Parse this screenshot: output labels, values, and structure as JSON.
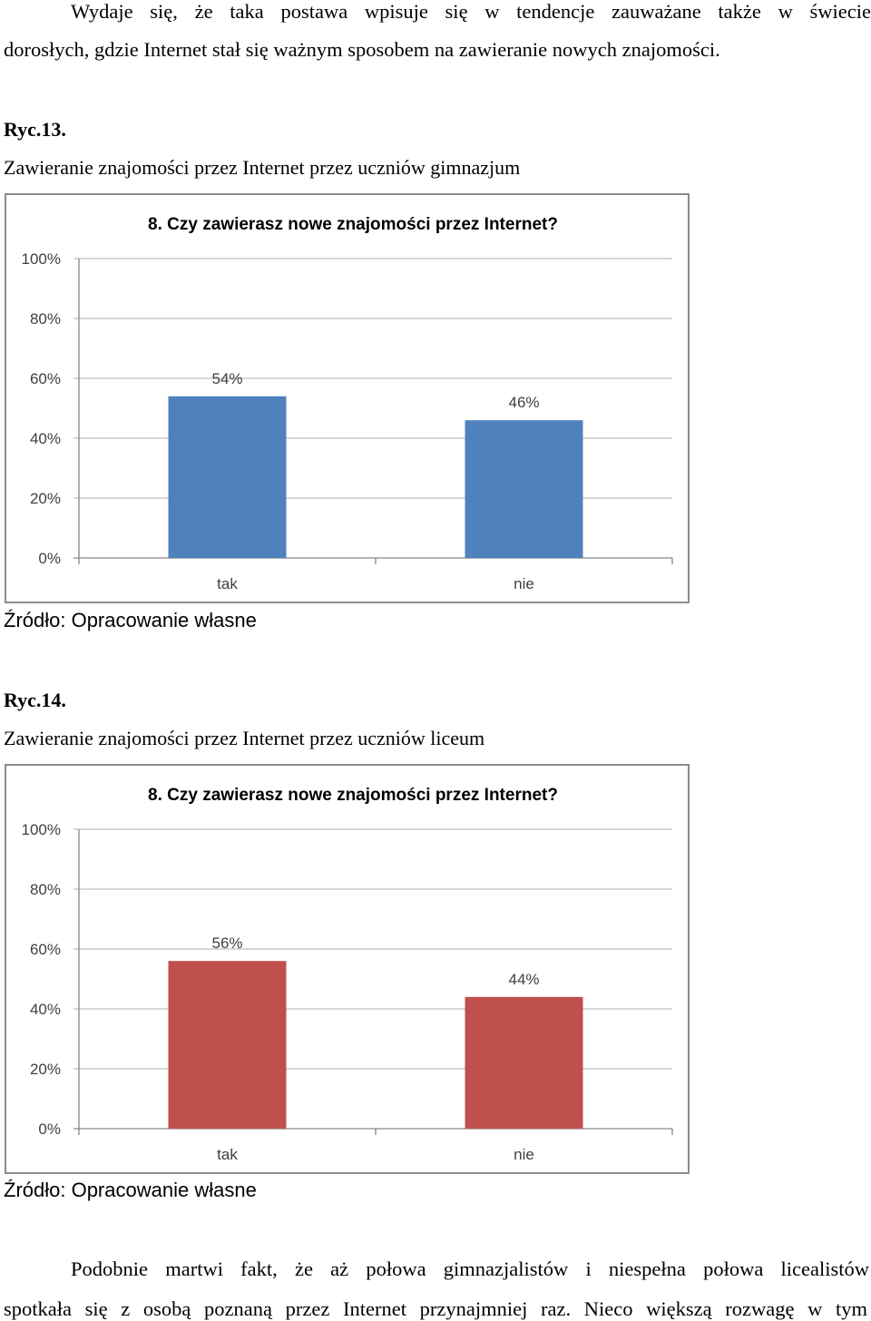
{
  "paragraph_top": {
    "line1": "Wydaje się, że taka postawa wpisuje się w tendencje zauważane także w świecie",
    "line2": "dorosłych, gdzie Internet stał się ważnym sposobem na zawieranie nowych znajomości."
  },
  "figures": [
    {
      "label": "Ryc.13.",
      "caption": "Zawieranie znajomości przez Internet przez uczniów gimnazjum",
      "source": "Źródło: Opracowanie własne",
      "chart_data": {
        "type": "bar",
        "title": "8. Czy zawierasz nowe znajomości przez Internet?",
        "categories": [
          "tak",
          "nie"
        ],
        "values": [
          54,
          46
        ],
        "data_labels": [
          "54%",
          "46%"
        ],
        "yticks": [
          "0%",
          "20%",
          "40%",
          "60%",
          "80%",
          "100%"
        ],
        "ylim": [
          0,
          100
        ],
        "grid": true,
        "bar_color": "#4f81bd"
      }
    },
    {
      "label": "Ryc.14.",
      "caption": "Zawieranie znajomości przez Internet przez uczniów liceum",
      "source": "Źródło: Opracowanie własne",
      "chart_data": {
        "type": "bar",
        "title": "8. Czy zawierasz nowe znajomości przez Internet?",
        "categories": [
          "tak",
          "nie"
        ],
        "values": [
          56,
          44
        ],
        "data_labels": [
          "56%",
          "44%"
        ],
        "yticks": [
          "0%",
          "20%",
          "40%",
          "60%",
          "80%",
          "100%"
        ],
        "ylim": [
          0,
          100
        ],
        "grid": true,
        "bar_color": "#c0504d"
      }
    }
  ],
  "paragraph_bottom": {
    "line1": "Podobnie martwi fakt, że aż połowa gimnazjalistów i niespełna połowa licealistów",
    "line2": "spotkała się z osobą poznaną przez Internet przynajmniej raz. Nieco większą rozwagę w tym"
  }
}
